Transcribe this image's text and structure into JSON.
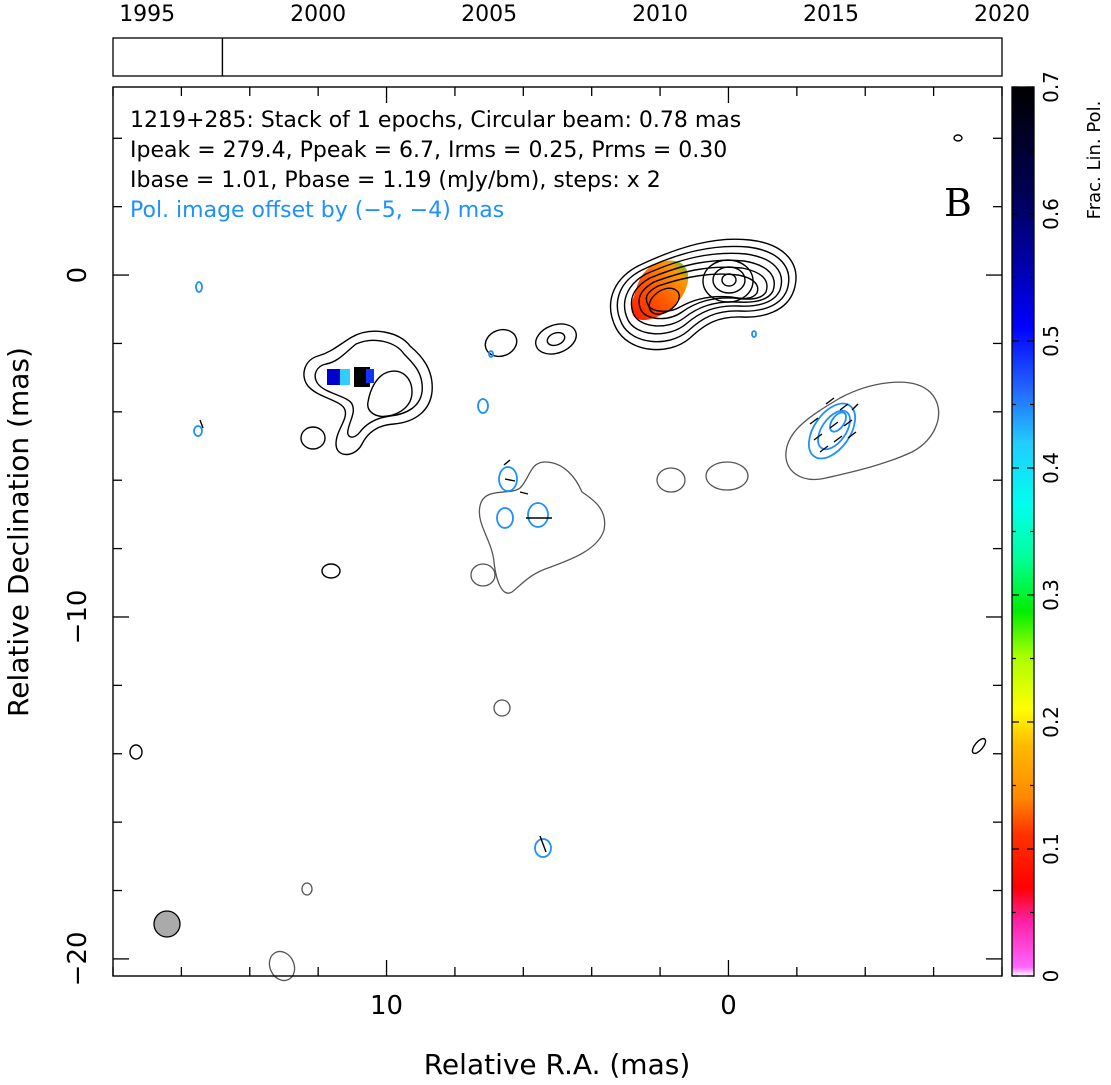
{
  "chart_data": {
    "type": "contour",
    "source_label": "B",
    "title_lines": [
      "1219+285: Stack of 1 epochs, Circular beam: 0.78 mas",
      "Ipeak = 279.4, Ppeak = 6.7, Irms = 0.25, Prms = 0.30",
      "Ibase = 1.01, Pbase = 1.19 (mJy/bm), steps: x 2"
    ],
    "offset_note": "Pol. image offset by (−5, −4) mas",
    "xlabel": "Relative R.A. (mas)",
    "ylabel": "Relative Declination (mas)",
    "x_range": [
      18,
      -8
    ],
    "y_range": [
      -20.5,
      5.5
    ],
    "x_major_ticks": [
      10,
      0
    ],
    "x_tick_labels": [
      "10",
      "0"
    ],
    "y_major_ticks": [
      0,
      -10,
      -20
    ],
    "y_tick_labels": [
      "0",
      "−10",
      "−20"
    ],
    "timeline": {
      "years": [
        1995,
        2000,
        2005,
        2010,
        2015,
        2020
      ],
      "year_labels": [
        "1995",
        "2000",
        "2005",
        "2010",
        "2015",
        "2020"
      ],
      "range": [
        1994,
        2020
      ],
      "epochs": [
        1997.2
      ]
    },
    "colorbar": {
      "label": "Frac. Lin. Pol.",
      "range": [
        0,
        0.7
      ],
      "ticks": [
        0,
        0.1,
        0.2,
        0.3,
        0.4,
        0.5,
        0.6,
        0.7
      ],
      "tick_labels": [
        "0",
        "0.1",
        "0.2",
        "0.3",
        "0.4",
        "0.5",
        "0.6",
        "0.7"
      ]
    },
    "beam": {
      "x": 16.8,
      "y": -18.8,
      "diameter_mas": 0.78
    },
    "colors": {
      "total_intensity": "#000000",
      "faint_contour": "#555555",
      "polarization": "#1e90ff",
      "beam": "#aaaaaa"
    }
  }
}
